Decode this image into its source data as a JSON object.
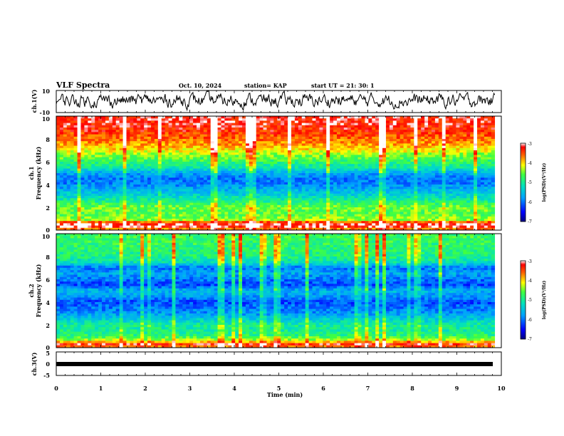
{
  "header": {
    "title": "VLF Spectra",
    "date": "Oct. 10, 2024",
    "station": "station= KAP",
    "start": "start  UT  =   21: 30: 1"
  },
  "chart_data": {
    "type": "heatmap",
    "x_axis": {
      "label": "Time  (min)",
      "range": [
        0,
        10
      ],
      "ticks": [
        "0",
        "1",
        "2",
        "3",
        "4",
        "5",
        "6",
        "7",
        "8",
        "9",
        "10"
      ],
      "data_end": 9.85
    },
    "panels": [
      {
        "id": "ch1_waveform",
        "type": "line",
        "ylabel": "ch.1(V)",
        "ylim": [
          -10,
          10
        ],
        "yticks": [
          "10",
          "-10"
        ]
      },
      {
        "id": "ch1_spectrogram",
        "type": "heatmap",
        "ylabel_line1": "ch.1",
        "ylabel_line2": "Frequency  (kHz)",
        "ylim": [
          0,
          10
        ],
        "yticks": [
          "0",
          "2",
          "4",
          "6",
          "8",
          "10"
        ],
        "colorbar": {
          "label": "log(PSD)(V²/Hz)",
          "range": [
            -7,
            -3
          ],
          "ticks": [
            "-3",
            "-4",
            "-5",
            "-6",
            "-7"
          ]
        },
        "profile": [
          {
            "f": 0.0,
            "v": -3.9
          },
          {
            "f": 0.3,
            "v": -3.2
          },
          {
            "f": 0.6,
            "v": -3.1
          },
          {
            "f": 0.9,
            "v": -4.4
          },
          {
            "f": 1.5,
            "v": -4.6
          },
          {
            "f": 2.0,
            "v": -4.5
          },
          {
            "f": 2.5,
            "v": -4.9
          },
          {
            "f": 3.0,
            "v": -5.3
          },
          {
            "f": 3.5,
            "v": -5.6
          },
          {
            "f": 4.0,
            "v": -5.9
          },
          {
            "f": 4.5,
            "v": -6.0
          },
          {
            "f": 5.0,
            "v": -5.7
          },
          {
            "f": 5.5,
            "v": -5.1
          },
          {
            "f": 6.0,
            "v": -4.8
          },
          {
            "f": 6.5,
            "v": -4.5
          },
          {
            "f": 7.0,
            "v": -4.1
          },
          {
            "f": 7.5,
            "v": -3.8
          },
          {
            "f": 8.0,
            "v": -3.6
          },
          {
            "f": 9.0,
            "v": -3.3
          },
          {
            "f": 10.0,
            "v": -3.2
          }
        ]
      },
      {
        "id": "ch2_spectrogram",
        "type": "heatmap",
        "ylabel_line1": "ch.2",
        "ylabel_line2": "Frequency  (kHz)",
        "ylim": [
          0,
          10
        ],
        "yticks": [
          "0",
          "2",
          "4",
          "6",
          "8",
          "10"
        ],
        "colorbar": {
          "label": "log(PSD)(V²/Hz)",
          "range": [
            -7,
            -3
          ],
          "ticks": [
            "-3",
            "-4",
            "-5",
            "-6",
            "-7"
          ]
        },
        "profile": [
          {
            "f": 0.0,
            "v": -3.8
          },
          {
            "f": 0.3,
            "v": -3.3
          },
          {
            "f": 0.6,
            "v": -4.2
          },
          {
            "f": 1.0,
            "v": -4.8
          },
          {
            "f": 1.5,
            "v": -5.0
          },
          {
            "f": 2.0,
            "v": -5.0
          },
          {
            "f": 2.5,
            "v": -5.4
          },
          {
            "f": 3.0,
            "v": -5.8
          },
          {
            "f": 3.5,
            "v": -6.0
          },
          {
            "f": 4.0,
            "v": -6.2
          },
          {
            "f": 4.5,
            "v": -5.8
          },
          {
            "f": 5.0,
            "v": -5.6
          },
          {
            "f": 5.5,
            "v": -6.2
          },
          {
            "f": 6.0,
            "v": -6.0
          },
          {
            "f": 6.5,
            "v": -5.7
          },
          {
            "f": 7.0,
            "v": -6.0
          },
          {
            "f": 7.5,
            "v": -5.2
          },
          {
            "f": 8.0,
            "v": -4.9
          },
          {
            "f": 9.0,
            "v": -4.8
          },
          {
            "f": 10.0,
            "v": -4.7
          }
        ]
      },
      {
        "id": "ch3_waveform",
        "type": "line",
        "ylabel": "ch.3(V)",
        "ylim": [
          -5,
          5
        ],
        "yticks": [
          "5",
          "0",
          "-5"
        ]
      }
    ]
  }
}
